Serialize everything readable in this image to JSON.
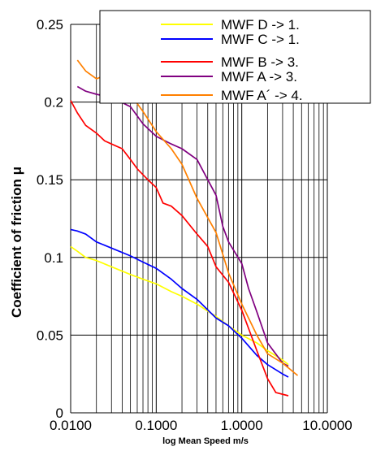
{
  "chart_data": {
    "type": "line",
    "title": "",
    "xlabel": "log Mean Speed m/s",
    "ylabel": "Coefficient of friction μ",
    "xscale": "log",
    "xlim": [
      0.01,
      10
    ],
    "ylim": [
      0,
      0.25
    ],
    "grid": "on",
    "legend_position": "top-right",
    "x_ticks": [
      0.01,
      0.1,
      1,
      10
    ],
    "x_tick_labels": [
      "0.0100",
      "0.1000",
      "1.0000",
      "10.0000"
    ],
    "y_ticks": [
      0,
      0.05,
      0.1,
      0.15,
      0.2,
      0.25
    ],
    "y_tick_labels": [
      "0",
      "0.05",
      "0.1",
      "0.15",
      "0.2",
      "0.25"
    ],
    "series": [
      {
        "name": "MWF D -> 1.",
        "color": "#ffff00",
        "points": [
          [
            0.01,
            0.107
          ],
          [
            0.012,
            0.104
          ],
          [
            0.015,
            0.1
          ],
          [
            0.02,
            0.098
          ],
          [
            0.03,
            0.094
          ],
          [
            0.05,
            0.089
          ],
          [
            0.07,
            0.086
          ],
          [
            0.1,
            0.083
          ],
          [
            0.15,
            0.078
          ],
          [
            0.2,
            0.075
          ],
          [
            0.3,
            0.07
          ],
          [
            0.5,
            0.062
          ],
          [
            0.7,
            0.056
          ],
          [
            1.0,
            0.05
          ],
          [
            1.5,
            0.045
          ],
          [
            2.0,
            0.04
          ],
          [
            3.0,
            0.034
          ],
          [
            3.5,
            0.031
          ]
        ]
      },
      {
        "name": "MWF C -> 1.",
        "color": "#0000ff",
        "points": [
          [
            0.01,
            0.118
          ],
          [
            0.012,
            0.117
          ],
          [
            0.015,
            0.115
          ],
          [
            0.02,
            0.11
          ],
          [
            0.03,
            0.106
          ],
          [
            0.05,
            0.101
          ],
          [
            0.07,
            0.097
          ],
          [
            0.1,
            0.093
          ],
          [
            0.15,
            0.086
          ],
          [
            0.2,
            0.08
          ],
          [
            0.3,
            0.073
          ],
          [
            0.5,
            0.061
          ],
          [
            0.7,
            0.056
          ],
          [
            1.0,
            0.048
          ],
          [
            1.5,
            0.037
          ],
          [
            2.0,
            0.031
          ],
          [
            3.0,
            0.025
          ],
          [
            3.5,
            0.023
          ]
        ]
      },
      {
        "name": "MWF B -> 3.",
        "color": "#ff0000",
        "points": [
          [
            0.01,
            0.201
          ],
          [
            0.012,
            0.193
          ],
          [
            0.015,
            0.185
          ],
          [
            0.02,
            0.18
          ],
          [
            0.025,
            0.175
          ],
          [
            0.03,
            0.173
          ],
          [
            0.04,
            0.17
          ],
          [
            0.05,
            0.163
          ],
          [
            0.06,
            0.157
          ],
          [
            0.08,
            0.15
          ],
          [
            0.1,
            0.145
          ],
          [
            0.12,
            0.135
          ],
          [
            0.15,
            0.133
          ],
          [
            0.2,
            0.127
          ],
          [
            0.3,
            0.115
          ],
          [
            0.4,
            0.107
          ],
          [
            0.5,
            0.094
          ],
          [
            0.7,
            0.084
          ],
          [
            1.0,
            0.066
          ],
          [
            1.5,
            0.04
          ],
          [
            2.0,
            0.022
          ],
          [
            2.5,
            0.013
          ],
          [
            3.5,
            0.011
          ]
        ]
      },
      {
        "name": "MWF A -> 3.",
        "color": "#800080",
        "points": [
          [
            0.012,
            0.21
          ],
          [
            0.015,
            0.207
          ],
          [
            0.02,
            0.205
          ],
          [
            0.03,
            0.203
          ],
          [
            0.05,
            0.197
          ],
          [
            0.07,
            0.186
          ],
          [
            0.1,
            0.178
          ],
          [
            0.15,
            0.173
          ],
          [
            0.2,
            0.17
          ],
          [
            0.3,
            0.163
          ],
          [
            0.4,
            0.15
          ],
          [
            0.5,
            0.14
          ],
          [
            0.6,
            0.12
          ],
          [
            0.7,
            0.11
          ],
          [
            1.0,
            0.096
          ],
          [
            1.2,
            0.08
          ],
          [
            1.5,
            0.065
          ],
          [
            2.0,
            0.045
          ],
          [
            3.0,
            0.032
          ],
          [
            3.5,
            0.03
          ]
        ]
      },
      {
        "name": "MWF A´ -> 4.",
        "color": "#ff8000",
        "points": [
          [
            0.012,
            0.227
          ],
          [
            0.015,
            0.22
          ],
          [
            0.02,
            0.215
          ],
          [
            0.025,
            0.217
          ],
          [
            0.03,
            0.213
          ],
          [
            0.05,
            0.205
          ],
          [
            0.07,
            0.194
          ],
          [
            0.1,
            0.181
          ],
          [
            0.15,
            0.17
          ],
          [
            0.2,
            0.16
          ],
          [
            0.3,
            0.138
          ],
          [
            0.5,
            0.116
          ],
          [
            0.7,
            0.09
          ],
          [
            1.0,
            0.07
          ],
          [
            1.5,
            0.05
          ],
          [
            2.0,
            0.038
          ],
          [
            3.0,
            0.032
          ],
          [
            4.5,
            0.024
          ]
        ]
      }
    ]
  }
}
